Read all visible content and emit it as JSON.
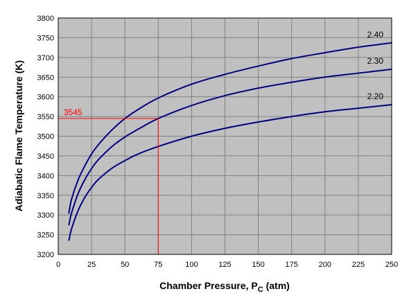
{
  "chart_data": {
    "type": "line",
    "title": "",
    "xlabel_main": "Chamber Pressure, P",
    "xlabel_sub": "C",
    "xlabel_suffix": " (atm)",
    "ylabel": "Adiabatic Flame Temperature (K)",
    "xlim": [
      0,
      250
    ],
    "ylim": [
      3200,
      3800
    ],
    "x_ticks": [
      0,
      25,
      50,
      75,
      100,
      125,
      150,
      175,
      200,
      225,
      250
    ],
    "y_ticks": [
      3200,
      3250,
      3300,
      3350,
      3400,
      3450,
      3500,
      3550,
      3600,
      3650,
      3700,
      3750,
      3800
    ],
    "grid": true,
    "plot_background": "#c0c0c0",
    "grid_color": "#808080",
    "line_color": "#000080",
    "series": [
      {
        "name": "2.40",
        "x": [
          8,
          10,
          15,
          20,
          25,
          30,
          40,
          50,
          60,
          75,
          100,
          125,
          150,
          175,
          200,
          225,
          250
        ],
        "y": [
          3305,
          3340,
          3390,
          3425,
          3455,
          3478,
          3515,
          3545,
          3568,
          3597,
          3632,
          3657,
          3678,
          3697,
          3712,
          3726,
          3737
        ]
      },
      {
        "name": "2.30",
        "x": [
          8,
          10,
          15,
          20,
          25,
          30,
          40,
          50,
          60,
          75,
          100,
          125,
          150,
          175,
          200,
          225,
          250
        ],
        "y": [
          3275,
          3305,
          3355,
          3390,
          3418,
          3440,
          3473,
          3498,
          3518,
          3545,
          3578,
          3603,
          3622,
          3637,
          3650,
          3660,
          3670
        ]
      },
      {
        "name": "2.20",
        "x": [
          8,
          10,
          15,
          20,
          25,
          30,
          40,
          50,
          60,
          75,
          100,
          125,
          150,
          175,
          200,
          225,
          250
        ],
        "y": [
          3236,
          3265,
          3312,
          3345,
          3370,
          3390,
          3418,
          3438,
          3455,
          3474,
          3500,
          3520,
          3536,
          3550,
          3562,
          3571,
          3580
        ]
      }
    ],
    "annotation": {
      "label": "3545",
      "x": 75,
      "y": 3545,
      "color": "#ff0000"
    }
  }
}
